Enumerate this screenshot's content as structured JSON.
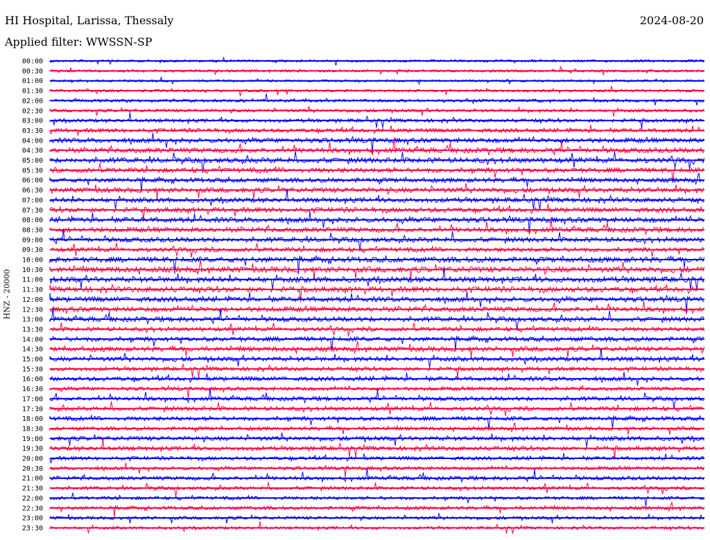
{
  "header": {
    "title": "HI Hospital, Larissa, Thessaly",
    "date": "2024-08-20",
    "filter": "Applied filter: WWSSN-SP"
  },
  "ylabel": "HNZ - 20000",
  "colors": {
    "blue": "#0000ff",
    "red": "#ff0040"
  },
  "chart_data": {
    "type": "line",
    "title": "HI Hospital, Larissa, Thessaly",
    "subtitle": "Applied filter: WWSSN-SP",
    "ylabel": "HNZ - 20000",
    "series_colors": [
      "#0000ff",
      "#ff0040"
    ],
    "rows": [
      {
        "label": "00:00",
        "activity": 0.15
      },
      {
        "label": "00:30",
        "activity": 0.2
      },
      {
        "label": "01:00",
        "activity": 0.12
      },
      {
        "label": "01:30",
        "activity": 0.2
      },
      {
        "label": "02:00",
        "activity": 0.25
      },
      {
        "label": "02:30",
        "activity": 0.3
      },
      {
        "label": "03:00",
        "activity": 0.4
      },
      {
        "label": "03:30",
        "activity": 0.5
      },
      {
        "label": "04:00",
        "activity": 0.7
      },
      {
        "label": "04:30",
        "activity": 0.75
      },
      {
        "label": "05:00",
        "activity": 0.8
      },
      {
        "label": "05:30",
        "activity": 0.7
      },
      {
        "label": "06:00",
        "activity": 0.65
      },
      {
        "label": "06:30",
        "activity": 0.75
      },
      {
        "label": "07:00",
        "activity": 0.7
      },
      {
        "label": "07:30",
        "activity": 0.7
      },
      {
        "label": "08:00",
        "activity": 0.8
      },
      {
        "label": "08:30",
        "activity": 0.75
      },
      {
        "label": "09:00",
        "activity": 0.7
      },
      {
        "label": "09:30",
        "activity": 0.6
      },
      {
        "label": "10:00",
        "activity": 0.85
      },
      {
        "label": "10:30",
        "activity": 0.9
      },
      {
        "label": "11:00",
        "activity": 0.85
      },
      {
        "label": "11:30",
        "activity": 0.8
      },
      {
        "label": "12:00",
        "activity": 0.75
      },
      {
        "label": "12:30",
        "activity": 0.75
      },
      {
        "label": "13:00",
        "activity": 0.7
      },
      {
        "label": "13:30",
        "activity": 0.55
      },
      {
        "label": "14:00",
        "activity": 0.65
      },
      {
        "label": "14:30",
        "activity": 0.7
      },
      {
        "label": "15:00",
        "activity": 0.65
      },
      {
        "label": "15:30",
        "activity": 0.5
      },
      {
        "label": "16:00",
        "activity": 0.6
      },
      {
        "label": "16:30",
        "activity": 0.45
      },
      {
        "label": "17:00",
        "activity": 0.55
      },
      {
        "label": "17:30",
        "activity": 0.55
      },
      {
        "label": "18:00",
        "activity": 0.55
      },
      {
        "label": "18:30",
        "activity": 0.45
      },
      {
        "label": "19:00",
        "activity": 0.6
      },
      {
        "label": "19:30",
        "activity": 0.55
      },
      {
        "label": "20:00",
        "activity": 0.45
      },
      {
        "label": "20:30",
        "activity": 0.4
      },
      {
        "label": "21:00",
        "activity": 0.5
      },
      {
        "label": "21:30",
        "activity": 0.4
      },
      {
        "label": "22:00",
        "activity": 0.35
      },
      {
        "label": "22:30",
        "activity": 0.4
      },
      {
        "label": "23:00",
        "activity": 0.35
      },
      {
        "label": "23:30",
        "activity": 0.25
      }
    ]
  }
}
